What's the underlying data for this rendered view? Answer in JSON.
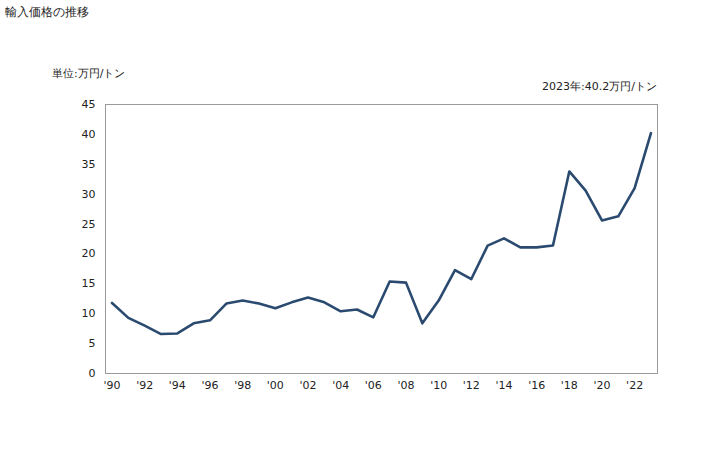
{
  "chart_data": {
    "type": "line",
    "title": "輸入価格の推移",
    "ylabel": "単位:万円/トン",
    "annotations": [
      "2023年:40.2万円/トン"
    ],
    "x": [
      1990,
      1991,
      1992,
      1993,
      1994,
      1995,
      1996,
      1997,
      1998,
      1999,
      2000,
      2001,
      2002,
      2003,
      2004,
      2005,
      2006,
      2007,
      2008,
      2009,
      2010,
      2011,
      2012,
      2013,
      2014,
      2015,
      2016,
      2017,
      2018,
      2019,
      2020,
      2021,
      2022,
      2023
    ],
    "values": [
      11.8,
      9.3,
      8.0,
      6.6,
      6.7,
      8.4,
      8.9,
      11.7,
      12.2,
      11.7,
      10.9,
      11.9,
      12.7,
      11.9,
      10.4,
      10.7,
      9.4,
      15.4,
      15.2,
      8.4,
      12.2,
      17.3,
      15.8,
      21.4,
      22.6,
      21.1,
      21.1,
      21.4,
      33.8,
      30.6,
      25.6,
      26.3,
      31.0,
      40.2
    ],
    "color": "#2b4a6f",
    "xlim": [
      1989.6,
      2023.4
    ],
    "xticks": [
      {
        "value": 1990,
        "label": "'90"
      },
      {
        "value": 1992,
        "label": "'92"
      },
      {
        "value": 1994,
        "label": "'94"
      },
      {
        "value": 1996,
        "label": "'96"
      },
      {
        "value": 1998,
        "label": "'98"
      },
      {
        "value": 2000,
        "label": "'00"
      },
      {
        "value": 2002,
        "label": "'02"
      },
      {
        "value": 2004,
        "label": "'04"
      },
      {
        "value": 2006,
        "label": "'06"
      },
      {
        "value": 2008,
        "label": "'08"
      },
      {
        "value": 2010,
        "label": "'10"
      },
      {
        "value": 2012,
        "label": "'12"
      },
      {
        "value": 2014,
        "label": "'14"
      },
      {
        "value": 2016,
        "label": "'16"
      },
      {
        "value": 2018,
        "label": "'18"
      },
      {
        "value": 2020,
        "label": "'20"
      },
      {
        "value": 2022,
        "label": "'22"
      }
    ],
    "ylim": [
      0,
      45
    ],
    "yticks": [
      0,
      5,
      10,
      15,
      20,
      25,
      30,
      35,
      40,
      45
    ],
    "grid": false
  }
}
